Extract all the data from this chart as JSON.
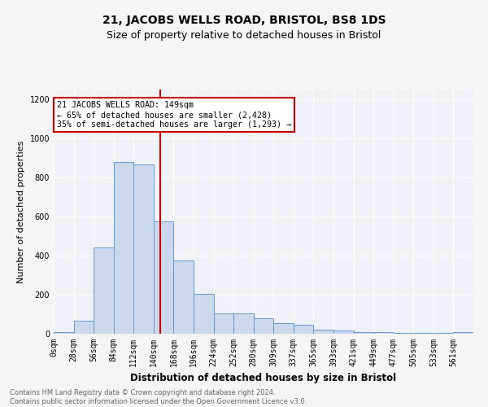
{
  "title1": "21, JACOBS WELLS ROAD, BRISTOL, BS8 1DS",
  "title2": "Size of property relative to detached houses in Bristol",
  "xlabel": "Distribution of detached houses by size in Bristol",
  "ylabel": "Number of detached properties",
  "bin_labels": [
    "0sqm",
    "28sqm",
    "56sqm",
    "84sqm",
    "112sqm",
    "140sqm",
    "168sqm",
    "196sqm",
    "224sqm",
    "252sqm",
    "280sqm",
    "309sqm",
    "337sqm",
    "365sqm",
    "393sqm",
    "421sqm",
    "449sqm",
    "477sqm",
    "505sqm",
    "533sqm",
    "561sqm"
  ],
  "bar_heights": [
    10,
    65,
    440,
    880,
    865,
    575,
    375,
    205,
    105,
    105,
    80,
    55,
    45,
    20,
    18,
    10,
    8,
    5,
    5,
    5,
    10
  ],
  "bar_color": "#ccd9ec",
  "bar_edge_color": "#6699cc",
  "red_line_x": 149,
  "bin_width": 28,
  "annotation_text": "21 JACOBS WELLS ROAD: 149sqm\n← 65% of detached houses are smaller (2,428)\n35% of semi-detached houses are larger (1,293) →",
  "annotation_box_color": "#ffffff",
  "annotation_box_edge": "#cc0000",
  "ylim": [
    0,
    1250
  ],
  "yticks": [
    0,
    200,
    400,
    600,
    800,
    1000,
    1200
  ],
  "footnote": "Contains HM Land Registry data © Crown copyright and database right 2024.\nContains public sector information licensed under the Open Government Licence v3.0.",
  "bg_color": "#eef2f8",
  "grid_color": "#ffffff",
  "title1_fontsize": 10,
  "title2_fontsize": 9,
  "xlabel_fontsize": 8.5,
  "ylabel_fontsize": 8,
  "tick_fontsize": 7
}
